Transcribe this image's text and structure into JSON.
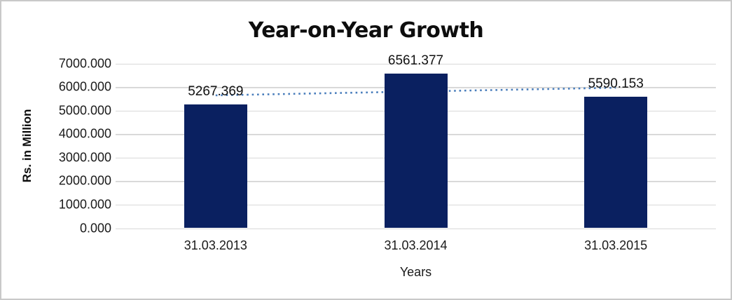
{
  "chart": {
    "title": "Year-on-Year Growth",
    "y_axis_title": "Rs. in Million",
    "x_axis_title": "Years"
  },
  "chart_data": {
    "type": "bar",
    "title": "Year-on-Year Growth",
    "xlabel": "Years",
    "ylabel": "Rs. in Million",
    "categories": [
      "31.03.2013",
      "31.03.2014",
      "31.03.2015"
    ],
    "values": [
      5267.369,
      6561.377,
      5590.153
    ],
    "data_labels": [
      "5267.369",
      "6561.377",
      "5590.153"
    ],
    "ylim": [
      0,
      7000
    ],
    "ytick_step": 1000,
    "ytick_labels": [
      "0.000",
      "1000.000",
      "2000.000",
      "3000.000",
      "4000.000",
      "5000.000",
      "6000.000",
      "7000.000"
    ],
    "grid": true,
    "legend": "none",
    "bar_color": "#0a2060",
    "gridline_color": "#d9d9d9",
    "frame_border_color": "#c9c9c9",
    "trendline": {
      "type": "linear",
      "style": "dotted",
      "color": "#4a7ebc",
      "endpoint_values": [
        5644.9,
        5967.7
      ]
    }
  }
}
